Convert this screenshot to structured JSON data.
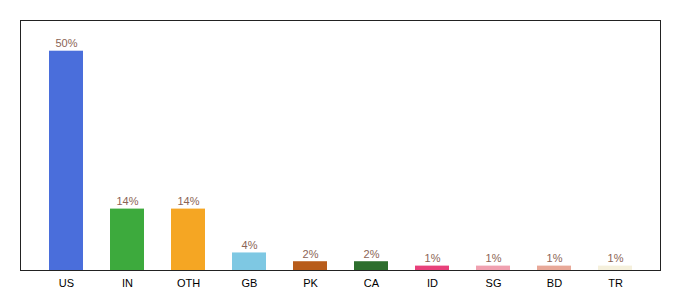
{
  "chart_data": {
    "type": "bar",
    "categories": [
      "US",
      "IN",
      "OTH",
      "GB",
      "PK",
      "CA",
      "ID",
      "SG",
      "BD",
      "TR"
    ],
    "values": [
      50,
      14,
      14,
      4,
      2,
      2,
      1,
      1,
      1,
      1
    ],
    "value_labels": [
      "50%",
      "14%",
      "14%",
      "4%",
      "2%",
      "2%",
      "1%",
      "1%",
      "1%",
      "1%"
    ],
    "colors": [
      "#4A6EDB",
      "#3DAA3D",
      "#F5A623",
      "#7EC8E3",
      "#B85C1A",
      "#2D6E2D",
      "#E8407A",
      "#F0A0B0",
      "#E8A898",
      "#F5F0DC"
    ],
    "ylim": [
      0,
      57
    ],
    "data_labels": true,
    "tick_labels": "x",
    "grid": false
  }
}
